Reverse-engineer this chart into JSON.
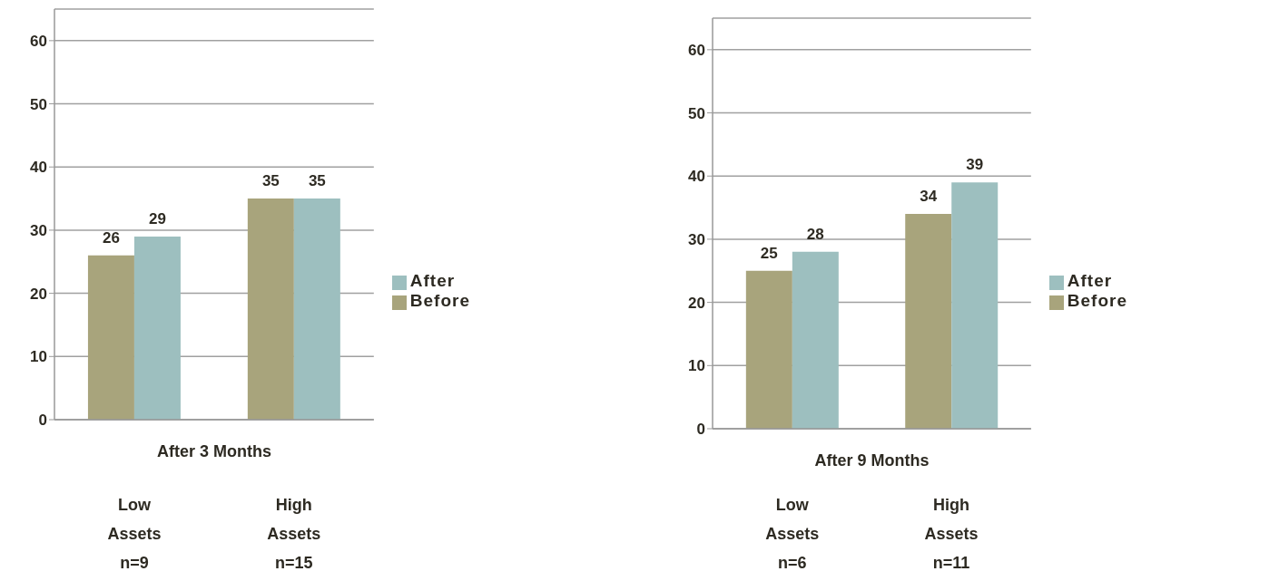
{
  "chart_data": [
    {
      "type": "bar",
      "xlabel": "After 3 Months",
      "categories": [
        "Low\nAssets\nn=9",
        "High\nAssets\nn=15"
      ],
      "series": [
        {
          "name": "Before",
          "color": "#a8a47c",
          "values": [
            26,
            35
          ]
        },
        {
          "name": "After",
          "color": "#9dbfbf",
          "values": [
            29,
            35
          ]
        }
      ],
      "ylim": [
        0,
        65
      ],
      "yticks": [
        0,
        10,
        20,
        30,
        40,
        50,
        60
      ],
      "grid": "y",
      "legend": "right",
      "data_labels": true
    },
    {
      "type": "bar",
      "xlabel": "After 9 Months",
      "categories": [
        "Low\nAssets\nn=6",
        "High\nAssets\nn=11"
      ],
      "series": [
        {
          "name": "Before",
          "color": "#a8a47c",
          "values": [
            25,
            34
          ]
        },
        {
          "name": "After",
          "color": "#9dbfbf",
          "values": [
            28,
            39
          ]
        }
      ],
      "ylim": [
        0,
        65
      ],
      "yticks": [
        0,
        10,
        20,
        30,
        40,
        50,
        60
      ],
      "grid": "y",
      "legend": "right",
      "data_labels": true
    }
  ]
}
